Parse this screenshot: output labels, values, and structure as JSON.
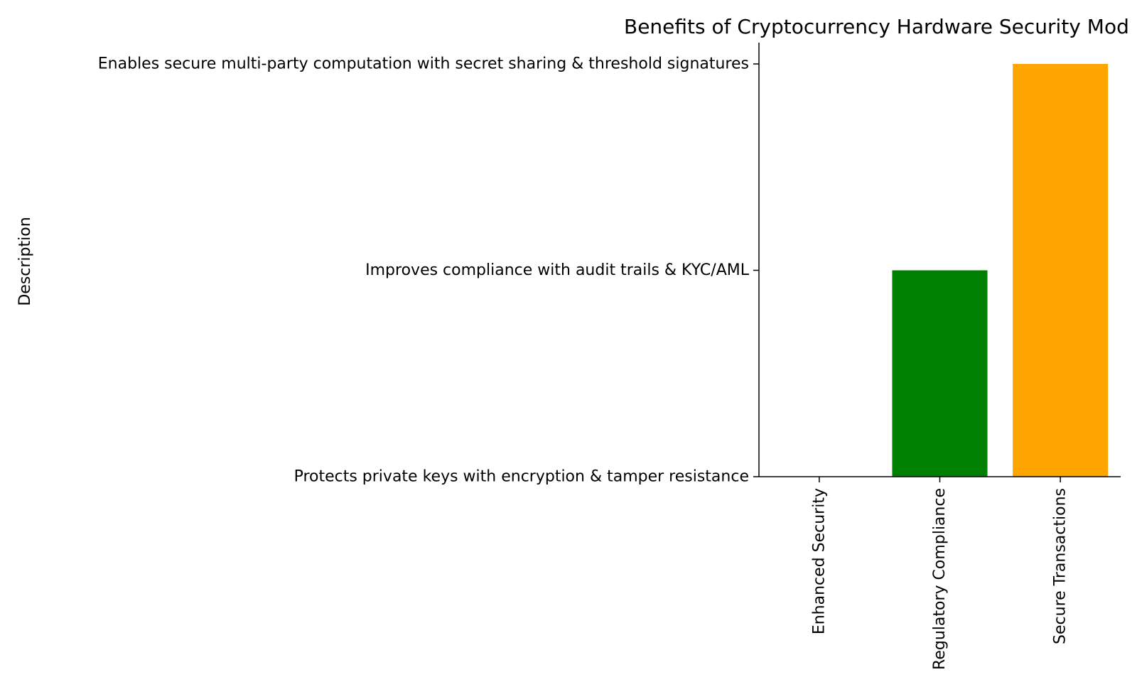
{
  "chart_data": {
    "type": "bar",
    "title": "Benefits of Cryptocurrency Hardware Security Mod",
    "xlabel": "",
    "ylabel": "Description",
    "categories": [
      "Enhanced Security",
      "Regulatory Compliance",
      "Secure Transactions"
    ],
    "y_categories": [
      "Protects private keys with encryption & tamper resistance",
      "Improves compliance with audit trails & KYC/AML",
      "Enables secure multi-party computation with secret sharing & threshold signatures"
    ],
    "values": [
      0,
      1,
      2
    ],
    "value_labels": [
      "Protects private keys with encryption & tamper resistance",
      "Improves compliance with audit trails & KYC/AML",
      "Enables secure multi-party computation with secret sharing & threshold signatures"
    ],
    "colors": [
      "#0000ff",
      "#008000",
      "#ffa500"
    ],
    "ylim": [
      0,
      2
    ],
    "grid": false,
    "legend": "none"
  }
}
